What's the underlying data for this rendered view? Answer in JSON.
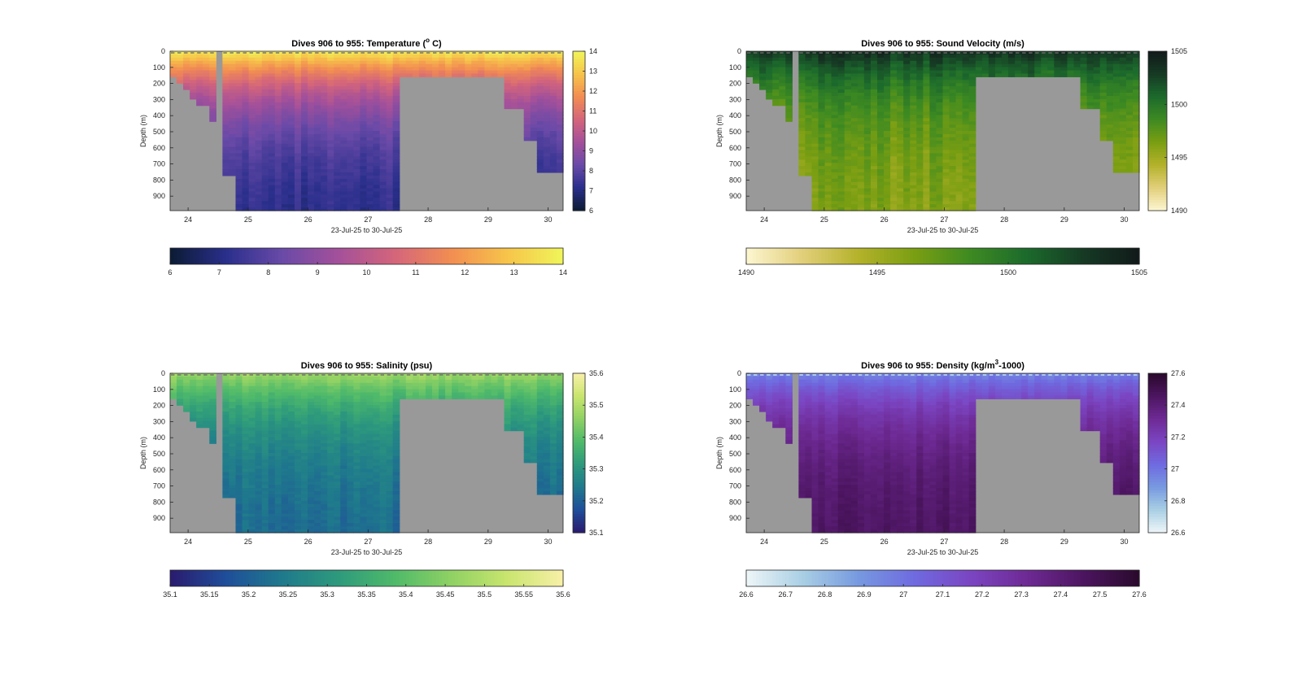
{
  "chart_data": [
    {
      "type": "heatmap",
      "title": "Dives 906 to 955: Temperature (° C)",
      "title_parts": {
        "pre": "Dives 906 to 955: Temperature (",
        "sup": "o",
        "post": " C)"
      },
      "xlabel": "23-Jul-25 to 30-Jul-25",
      "ylabel": "Depth (m)",
      "xticks": [
        "24",
        "25",
        "26",
        "27",
        "28",
        "29",
        "30"
      ],
      "yticks": [
        "0",
        "100",
        "200",
        "300",
        "400",
        "500",
        "600",
        "700",
        "800",
        "900"
      ],
      "xlim": [
        23.7,
        30.25
      ],
      "ylim": [
        0,
        990
      ],
      "colormap": [
        "#0b1b33",
        "#2a2f8c",
        "#6a4aa8",
        "#a4509a",
        "#d4657b",
        "#f28d52",
        "#f7c44a",
        "#f0f55a"
      ],
      "clim": [
        6,
        14
      ],
      "cbar_ticks": [
        "6",
        "7",
        "8",
        "9",
        "10",
        "11",
        "12",
        "13",
        "14"
      ],
      "hcbar_ticks": [
        "6",
        "7",
        "8",
        "9",
        "10",
        "11",
        "12",
        "13",
        "14"
      ],
      "grey_color": "#999999",
      "surface_value": 13.8,
      "bottom_value": 7.2,
      "noise": 0.25
    },
    {
      "type": "heatmap",
      "title": "Dives 906 to 955: Sound Velocity (m/s)",
      "title_parts": {
        "pre": "Dives 906 to 955: Sound Velocity (m/s)",
        "sup": "",
        "post": ""
      },
      "xlabel": "23-Jul-25 to 30-Jul-25",
      "ylabel": "Depth (m)",
      "xticks": [
        "24",
        "25",
        "26",
        "27",
        "28",
        "29",
        "30"
      ],
      "yticks": [
        "0",
        "100",
        "200",
        "300",
        "400",
        "500",
        "600",
        "700",
        "800",
        "900"
      ],
      "xlim": [
        23.7,
        30.25
      ],
      "ylim": [
        0,
        990
      ],
      "colormap": [
        "#fdf6d2",
        "#e2cf7a",
        "#b4b22a",
        "#7a9e12",
        "#3d8a22",
        "#1c6a2c",
        "#163a24",
        "#11191a"
      ],
      "clim": [
        1490,
        1505
      ],
      "cbar_ticks": [
        "1490",
        "1495",
        "1500",
        "1505"
      ],
      "hcbar_ticks": [
        "1490",
        "1495",
        "1500",
        "1505"
      ],
      "grey_color": "#999999",
      "surface_value": 1503.5,
      "bottom_value": 1496.0,
      "noise": 0.9
    },
    {
      "type": "heatmap",
      "title": "Dives 906 to 955: Salinity (psu)",
      "title_parts": {
        "pre": "Dives 906 to 955: Salinity (psu)",
        "sup": "",
        "post": ""
      },
      "xlabel": "23-Jul-25 to 30-Jul-25",
      "ylabel": "Depth (m)",
      "xticks": [
        "24",
        "25",
        "26",
        "27",
        "28",
        "29",
        "30"
      ],
      "yticks": [
        "0",
        "100",
        "200",
        "300",
        "400",
        "500",
        "600",
        "700",
        "800",
        "900"
      ],
      "xlim": [
        23.7,
        30.25
      ],
      "ylim": [
        0,
        990
      ],
      "colormap": [
        "#2a1a6e",
        "#1f4e9a",
        "#1f7a8c",
        "#2e9a7c",
        "#4fba6a",
        "#8fd164",
        "#c9e56e",
        "#f8f0a8"
      ],
      "clim": [
        35.1,
        35.6
      ],
      "cbar_ticks": [
        "35.1",
        "35.2",
        "35.3",
        "35.4",
        "35.5",
        "35.6"
      ],
      "hcbar_ticks": [
        "35.1",
        "35.15",
        "35.2",
        "35.25",
        "35.3",
        "35.35",
        "35.4",
        "35.45",
        "35.5",
        "35.55",
        "35.6"
      ],
      "grey_color": "#999999",
      "surface_value": 35.48,
      "bottom_value": 35.22,
      "noise": 0.02
    },
    {
      "type": "heatmap",
      "title": "Dives 906 to 955: Density (kg/m³-1000)",
      "title_parts": {
        "pre": "Dives 906 to 955: Density (kg/m",
        "sup": "3",
        "post": "-1000)"
      },
      "xlabel": "23-Jul-25 to 30-Jul-25",
      "ylabel": "Depth (m)",
      "xticks": [
        "24",
        "25",
        "26",
        "27",
        "28",
        "29",
        "30"
      ],
      "yticks": [
        "0",
        "100",
        "200",
        "300",
        "400",
        "500",
        "600",
        "700",
        "800",
        "900"
      ],
      "xlim": [
        23.7,
        30.25
      ],
      "ylim": [
        0,
        990
      ],
      "colormap": [
        "#eef6f8",
        "#a9cfe4",
        "#7799e0",
        "#6f6ae0",
        "#7b45c2",
        "#6e2a94",
        "#4c1560",
        "#2a0a2c"
      ],
      "clim": [
        26.6,
        27.6
      ],
      "cbar_ticks": [
        "26.6",
        "26.8",
        "27",
        "27.2",
        "27.4",
        "27.6"
      ],
      "hcbar_ticks": [
        "26.6",
        "26.7",
        "26.8",
        "26.9",
        "27",
        "27.1",
        "27.2",
        "27.3",
        "27.4",
        "27.5",
        "27.6"
      ],
      "grey_color": "#999999",
      "surface_value": 26.95,
      "bottom_value": 27.45,
      "noise": 0.03
    }
  ]
}
